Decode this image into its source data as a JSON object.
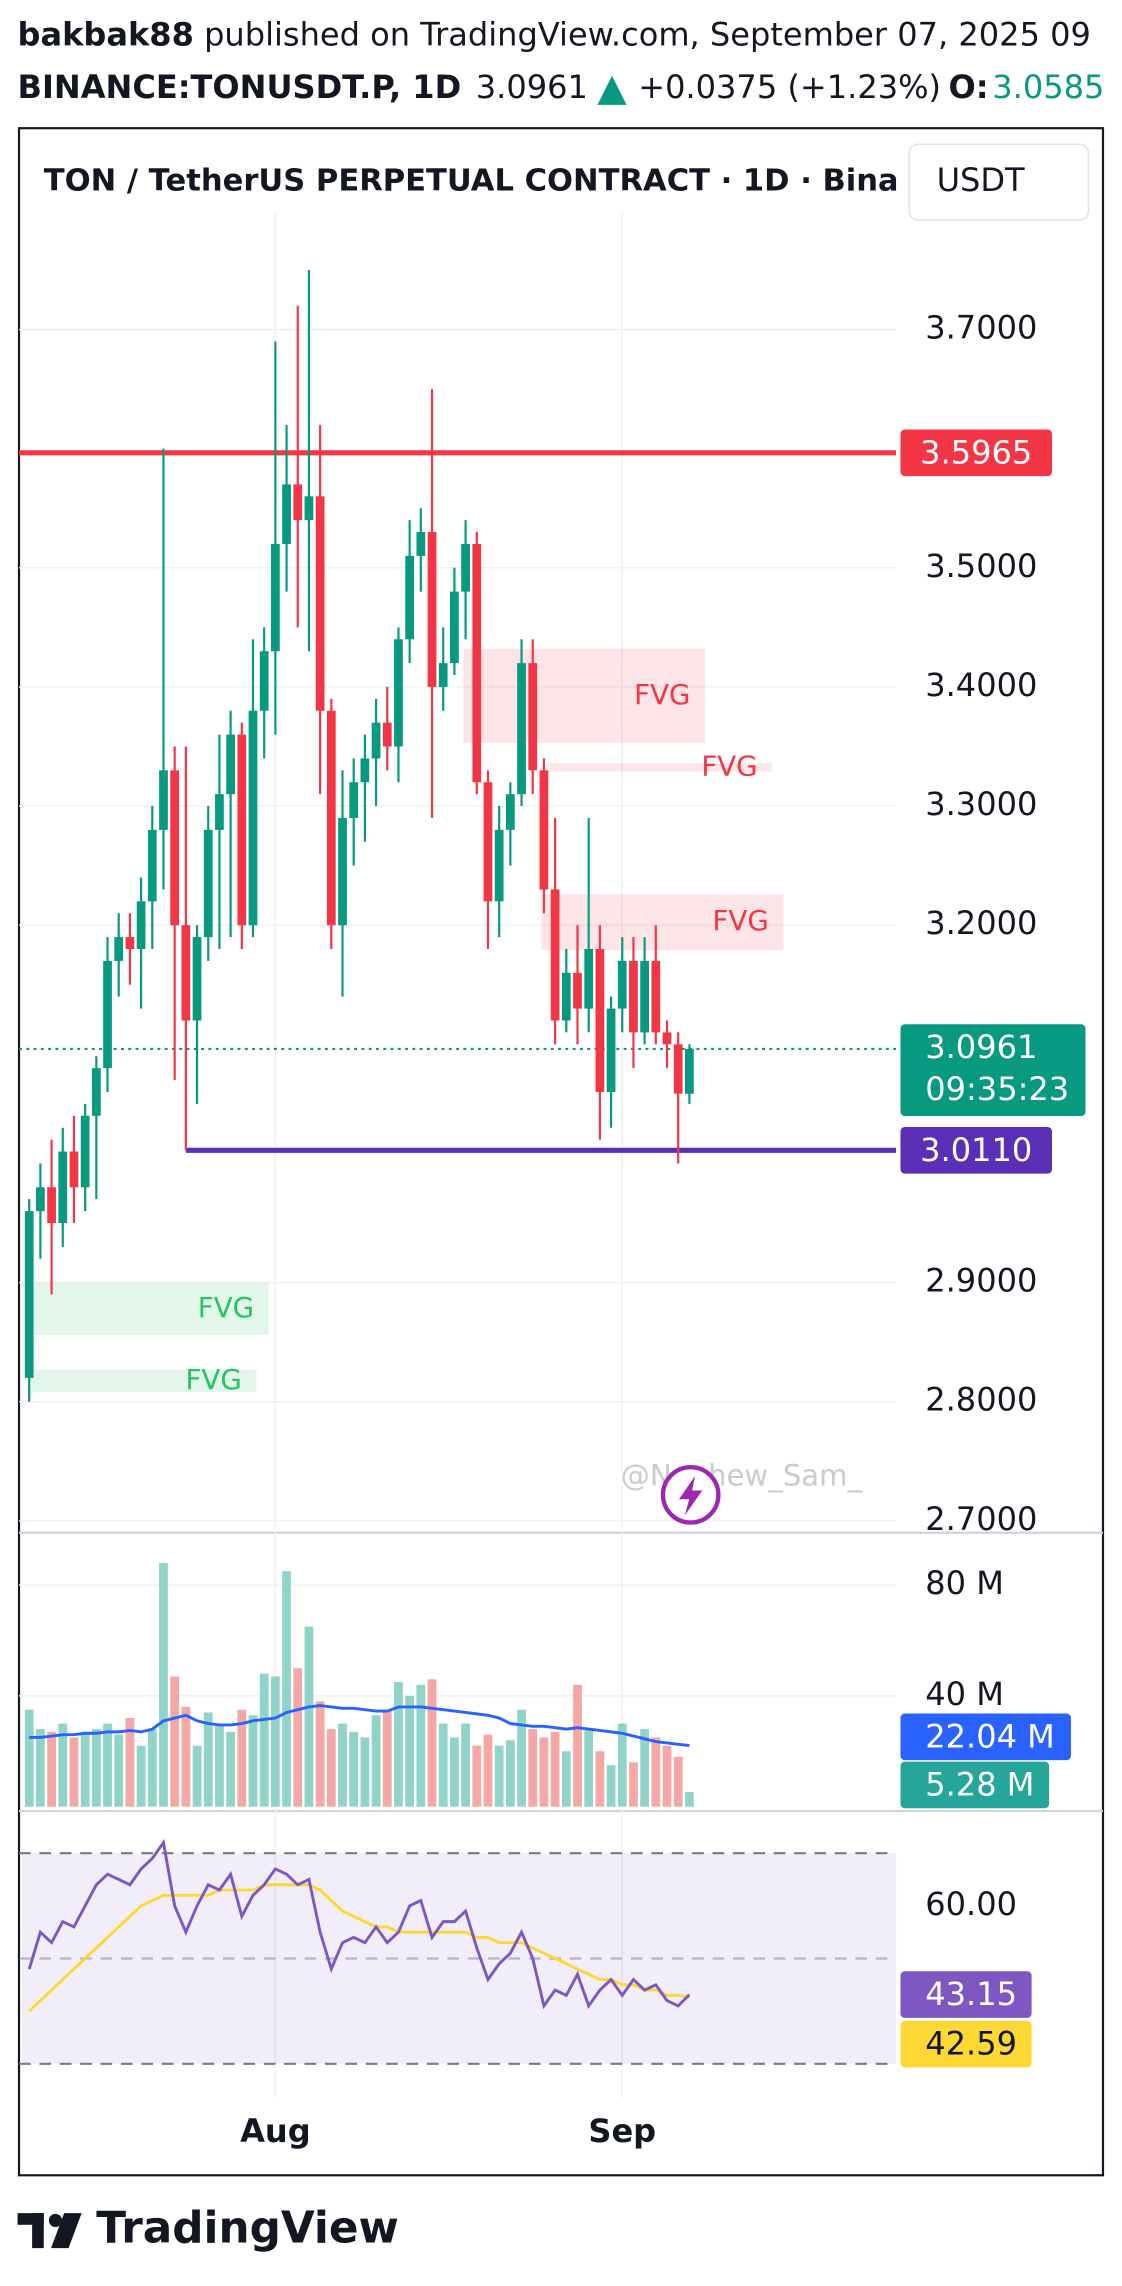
{
  "header": {
    "author": "bakbak88",
    "published": "published on TradingView.com, September 07, 2025 09",
    "symbol": "BINANCE:TONUSDT.P, 1D",
    "change": "+0.0375 (+1.23%)",
    "open_label": "O:"
  },
  "footer": {
    "logo": "TradingView"
  },
  "chart_data": [
    {
      "type": "candlestick",
      "title": "TON / TetherUS PERPETUAL CONTRACT · 1D · Bina",
      "currency": "USDT",
      "categories": [
        null,
        null,
        null,
        null,
        null,
        null,
        null,
        null,
        null,
        null,
        null,
        null,
        null,
        null,
        null,
        null,
        null,
        null,
        null,
        null,
        null,
        null,
        "Aug",
        null,
        null,
        null,
        null,
        null,
        null,
        null,
        null,
        null,
        null,
        null,
        null,
        null,
        null,
        null,
        null,
        null,
        null,
        null,
        null,
        null,
        null,
        null,
        null,
        null,
        null,
        null,
        null,
        null,
        null,
        "Sep",
        null,
        null,
        null,
        null,
        null,
        null
      ],
      "open": [
        2.82,
        2.96,
        2.98,
        2.95,
        3.01,
        2.98,
        3.04,
        3.08,
        3.17,
        3.19,
        3.18,
        3.22,
        3.28,
        3.33,
        3.2,
        3.12,
        3.19,
        3.28,
        3.31,
        3.36,
        3.2,
        3.38,
        3.43,
        3.52,
        3.57,
        3.54,
        3.56,
        3.38,
        3.2,
        3.29,
        3.32,
        3.34,
        3.37,
        3.35,
        3.44,
        3.51,
        3.53,
        3.4,
        3.42,
        3.48,
        3.52,
        3.32,
        3.22,
        3.28,
        3.31,
        3.42,
        3.33,
        3.23,
        3.12,
        3.16,
        3.13,
        3.18,
        3.06,
        3.13,
        3.17,
        3.11,
        3.17,
        3.11,
        3.1,
        3.0585
      ],
      "high": [
        2.97,
        3.0,
        3.02,
        3.03,
        3.04,
        3.05,
        3.09,
        3.19,
        3.21,
        3.21,
        3.24,
        3.3,
        3.6,
        3.35,
        3.35,
        3.2,
        3.3,
        3.36,
        3.38,
        3.37,
        3.44,
        3.45,
        3.69,
        3.62,
        3.72,
        3.75,
        3.62,
        3.39,
        3.33,
        3.34,
        3.36,
        3.39,
        3.4,
        3.45,
        3.54,
        3.55,
        3.65,
        3.45,
        3.5,
        3.54,
        3.53,
        3.33,
        3.3,
        3.32,
        3.44,
        3.44,
        3.34,
        3.29,
        3.18,
        3.2,
        3.29,
        3.2,
        3.14,
        3.19,
        3.19,
        3.19,
        3.2,
        3.12,
        3.11,
        3.1
      ],
      "low": [
        2.8,
        2.92,
        2.89,
        2.93,
        2.95,
        2.96,
        2.97,
        3.06,
        3.14,
        3.15,
        3.13,
        3.18,
        3.23,
        3.07,
        3.011,
        3.05,
        3.17,
        3.18,
        3.19,
        3.18,
        3.19,
        3.34,
        3.36,
        3.48,
        3.45,
        3.43,
        3.31,
        3.18,
        3.14,
        3.25,
        3.27,
        3.3,
        3.33,
        3.32,
        3.42,
        3.48,
        3.29,
        3.38,
        3.41,
        3.44,
        3.31,
        3.18,
        3.19,
        3.25,
        3.3,
        3.31,
        3.21,
        3.1,
        3.11,
        3.1,
        3.11,
        3.02,
        3.03,
        3.11,
        3.08,
        3.1,
        3.1,
        3.08,
        3.0,
        3.05
      ],
      "close": [
        2.96,
        2.98,
        2.95,
        3.01,
        2.98,
        3.04,
        3.08,
        3.17,
        3.19,
        3.18,
        3.22,
        3.28,
        3.33,
        3.2,
        3.12,
        3.19,
        3.28,
        3.31,
        3.36,
        3.2,
        3.38,
        3.43,
        3.52,
        3.57,
        3.54,
        3.56,
        3.38,
        3.2,
        3.29,
        3.32,
        3.34,
        3.37,
        3.35,
        3.44,
        3.51,
        3.53,
        3.4,
        3.42,
        3.48,
        3.52,
        3.32,
        3.22,
        3.28,
        3.31,
        3.42,
        3.33,
        3.23,
        3.12,
        3.16,
        3.13,
        3.18,
        3.06,
        3.13,
        3.17,
        3.11,
        3.17,
        3.11,
        3.1,
        3.0586,
        3.0961
      ],
      "up_color": "#089981",
      "down_color": "#f23645",
      "ylim": [
        2.69,
        3.869
      ],
      "yticks": [
        {
          "value": 2.7,
          "label": "2.7000"
        },
        {
          "value": 2.8,
          "label": "2.8000"
        },
        {
          "value": 2.9,
          "label": "2.9000"
        },
        {
          "value": 3.2,
          "label": "3.2000"
        },
        {
          "value": 3.3,
          "label": "3.3000"
        },
        {
          "value": 3.4,
          "label": "3.4000"
        },
        {
          "value": 3.5,
          "label": "3.5000"
        },
        {
          "value": 3.7,
          "label": "3.7000"
        }
      ],
      "grid": true,
      "price_lines": [
        {
          "value": 3.5965,
          "color": "#f23645"
        },
        {
          "value": 3.011,
          "label": "3.0110",
          "color": "#5b2fb5",
          "start": 14
        }
      ],
      "countdown": "09:35:23",
      "zones": [
        {
          "label": "FVG",
          "y": [
            3.353,
            3.432
          ],
          "x": [
            38.8,
            60.4
          ],
          "color": "#f23645"
        },
        {
          "label": "FVG",
          "y": [
            3.329,
            3.336
          ],
          "x": [
            46.4,
            66.4
          ],
          "color": "#f23645"
        },
        {
          "label": "FVG",
          "y": [
            3.179,
            3.226
          ],
          "x": [
            45.8,
            67.4
          ],
          "color": "#f23645"
        },
        {
          "label": "FVG",
          "y": [
            2.856,
            2.9
          ],
          "x": [
            0,
            21.4
          ],
          "color": "#22c55e"
        },
        {
          "label": "FVG",
          "y": [
            2.808,
            2.827
          ],
          "x": [
            0,
            20.3
          ],
          "color": "#22c55e"
        }
      ],
      "watermark": "@Nephew_Sam_"
    },
    {
      "type": "bar",
      "values": [
        35,
        28,
        27,
        30,
        25,
        27,
        28,
        30,
        26,
        32,
        22,
        28,
        88,
        47,
        36,
        22,
        34,
        30,
        27,
        35,
        33,
        48,
        47,
        85,
        50,
        65,
        38,
        28,
        30,
        27,
        25,
        33,
        35,
        45,
        40,
        44,
        46,
        30,
        25,
        30,
        22,
        26,
        22,
        24,
        35,
        28,
        25,
        27,
        20,
        44,
        28,
        20,
        15,
        30,
        16,
        28,
        25,
        22,
        18,
        5.28
      ],
      "last_label": "5.28 M",
      "up_color": "#8fd3c9",
      "down_color": "#f5a7a6",
      "ma": {
        "color": "#2962ff",
        "last_label": "22.04 M",
        "values": [
          25,
          25,
          25.5,
          26,
          26,
          26.5,
          26.5,
          27,
          27,
          27.5,
          27,
          28,
          31,
          32,
          33,
          31,
          30,
          29.5,
          29.5,
          30,
          31,
          31.5,
          32,
          34,
          35,
          36,
          36.5,
          36,
          35.5,
          35.5,
          35,
          34.5,
          34.5,
          36,
          36,
          36,
          35.5,
          35,
          34.5,
          34,
          33.5,
          33,
          32,
          30,
          29.5,
          29,
          29,
          28.5,
          28,
          28.5,
          28,
          27.5,
          27,
          26.5,
          25.5,
          24.5,
          23.5,
          23,
          22.5,
          22.04
        ]
      },
      "ylim": [
        0,
        98.9
      ],
      "yticks": [
        {
          "value": 40,
          "label": "40 M"
        },
        {
          "value": 80,
          "label": "80 M"
        }
      ]
    },
    {
      "type": "line",
      "series": [
        {
          "color": "#7e57c2",
          "values": [
            48,
            55,
            53,
            57,
            56,
            60,
            64,
            66,
            65,
            64,
            67,
            69,
            72,
            60,
            55,
            60,
            64,
            63,
            66,
            58,
            62,
            64,
            67,
            66,
            64,
            65,
            55,
            48,
            53,
            54,
            53,
            56,
            53,
            55,
            60,
            61,
            54,
            57,
            57,
            59,
            52,
            46,
            49,
            51,
            55,
            50,
            41,
            44,
            43,
            47,
            41,
            44,
            46,
            43,
            46,
            44,
            45,
            42,
            41,
            43.15
          ]
        },
        {
          "color": "#fdd835",
          "values": [
            40,
            42,
            44,
            46,
            48,
            50,
            52,
            54,
            56,
            58,
            60,
            61,
            62,
            62,
            62,
            62,
            62,
            63,
            63,
            63,
            63,
            64,
            64,
            64,
            64,
            64,
            63,
            61,
            59,
            58,
            57,
            56,
            56,
            55,
            55,
            55,
            55,
            55,
            55,
            55,
            54,
            54,
            53,
            53,
            53,
            52,
            51,
            50,
            49,
            48,
            47,
            46,
            46,
            45,
            45,
            44,
            44,
            43,
            43,
            42.59
          ]
        }
      ],
      "ylim": [
        23.5,
        78
      ],
      "yticks": [
        {
          "value": 60,
          "label": "60.00"
        }
      ],
      "band": [
        30,
        70
      ],
      "midline": 50
    }
  ]
}
